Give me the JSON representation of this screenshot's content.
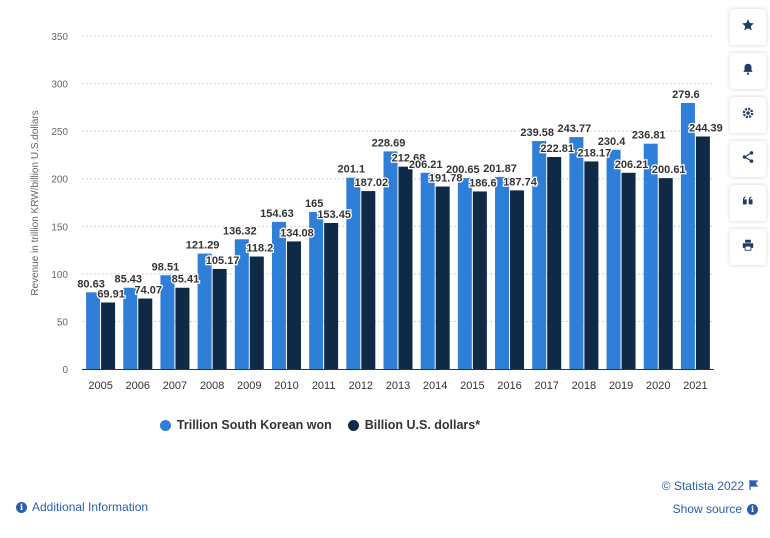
{
  "chart_data": {
    "type": "bar",
    "categories": [
      "2005",
      "2006",
      "2007",
      "2008",
      "2009",
      "2010",
      "2011",
      "2012",
      "2013",
      "2014",
      "2015",
      "2016",
      "2017",
      "2018",
      "2019",
      "2020",
      "2021"
    ],
    "series": [
      {
        "name": "Trillion South Korean won",
        "color": "#2f7ed8",
        "values": [
          80.63,
          85.43,
          98.51,
          121.29,
          136.32,
          154.63,
          165,
          201.1,
          228.69,
          206.21,
          200.65,
          201.87,
          239.58,
          243.77,
          230.4,
          236.81,
          279.6
        ],
        "labels": [
          "80.63",
          "85.43",
          "98.51",
          "121.29",
          "136.32",
          "154.63",
          "165",
          "201.1",
          "228.69",
          "206.21",
          "200.65",
          "201.87",
          "239.58",
          "243.77",
          "230.4",
          "236.81",
          "279.6"
        ]
      },
      {
        "name": "Billion U.S. dollars*",
        "color": "#0e2a47",
        "values": [
          69.91,
          74.07,
          85.41,
          105.17,
          118.2,
          134.08,
          153.45,
          187.02,
          212.68,
          191.78,
          186.6,
          187.74,
          222.81,
          218.17,
          206.21,
          200.61,
          244.39
        ],
        "labels": [
          "69.91",
          "74.07",
          "85.41",
          "105.17",
          "118.2",
          "134.08",
          "153.45",
          "187.02",
          "212.68",
          "191.78",
          "186.6",
          "187.74",
          "222.81",
          "218.17",
          "206.21",
          "200.61",
          "244.39"
        ]
      }
    ],
    "ylabel": "Revenue in trillion KRW/billion U.S.dollars",
    "ylim": [
      0,
      350
    ],
    "yticks": [
      0,
      50,
      100,
      150,
      200,
      250,
      300,
      350
    ],
    "grid": true,
    "legend_position": "bottom"
  },
  "legend": {
    "krw": "Trillion South Korean won",
    "usd": "Billion U.S. dollars*"
  },
  "footer": {
    "additional_info": "Additional Information",
    "copyright": "© Statista 2022",
    "show_source": "Show source"
  },
  "toolbar": {
    "icons": [
      "star-icon",
      "bell-icon",
      "gear-icon",
      "share-icon",
      "quote-icon",
      "print-icon"
    ]
  }
}
